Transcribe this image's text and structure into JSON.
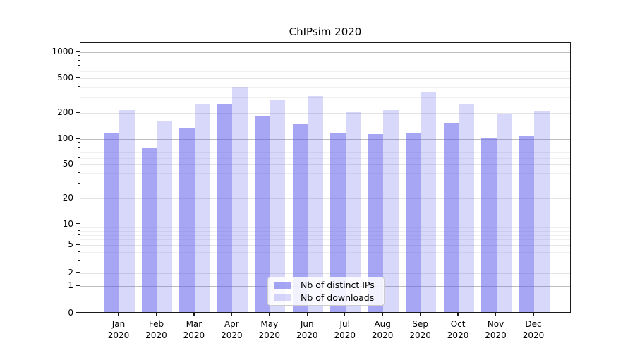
{
  "chart_data": {
    "type": "bar",
    "title": "ChIPsim 2020",
    "categories": [
      "Jan",
      "Feb",
      "Mar",
      "Apr",
      "May",
      "Jun",
      "Jul",
      "Aug",
      "Sep",
      "Oct",
      "Nov",
      "Dec"
    ],
    "category_year": "2020",
    "series": [
      {
        "name": "Nb of distinct IPs",
        "color": "rgba(92,92,235,0.55)",
        "values": [
          116,
          80,
          132,
          248,
          180,
          150,
          117,
          113,
          117,
          153,
          104,
          110
        ]
      },
      {
        "name": "Nb of downloads",
        "color": "rgba(92,92,235,0.24)",
        "values": [
          215,
          160,
          248,
          395,
          285,
          310,
          208,
          216,
          345,
          253,
          196,
          212
        ]
      }
    ],
    "yscale": "symlog",
    "ytick_labels": [
      "0",
      "1",
      "2",
      "5",
      "10",
      "20",
      "50",
      "100",
      "200",
      "500",
      "1000"
    ],
    "ytick_values": [
      0,
      1,
      2,
      5,
      10,
      20,
      50,
      100,
      200,
      500,
      1000
    ],
    "ylim": [
      0,
      1270
    ],
    "grid": true,
    "legend_position": "lower center",
    "background_color": "#ffffff",
    "frame_color": "#1a1a1a",
    "legend_border_color": "#cccccc"
  }
}
